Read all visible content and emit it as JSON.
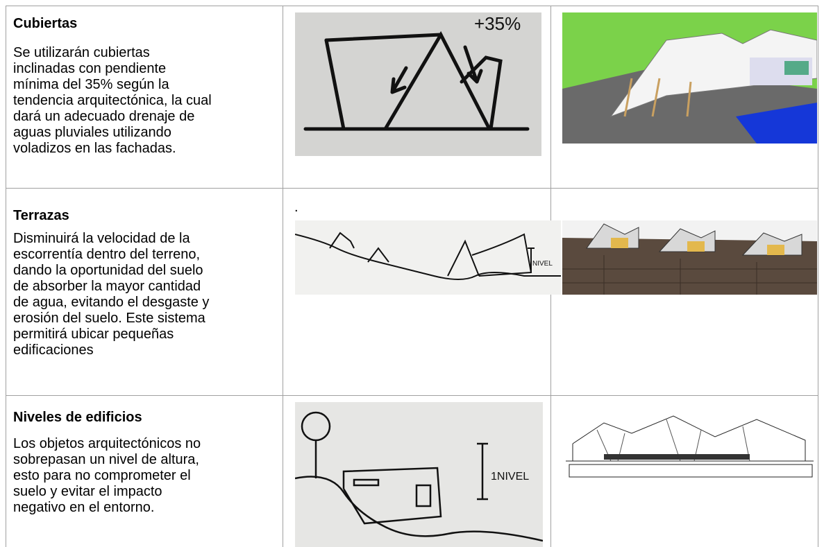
{
  "table": {
    "rows": [
      {
        "title": "Cubiertas",
        "lines": [
          "Se utilizarán cubiertas",
          "inclinadas con pendiente",
          "mínima del 35% según la",
          "tendencia arquitectónica, la cual",
          "dará un adecuado drenaje de",
          "aguas pluviales utilizando",
          "voladizos en las fachadas."
        ],
        "sketch_label": "+35%"
      },
      {
        "title": "Terrazas",
        "mark": ".",
        "lines": [
          "Disminuirá la velocidad de la",
          "escorrentía dentro del terreno,",
          "dando la oportunidad del suelo",
          "de absorber la mayor cantidad",
          "de agua, evitando el desgaste y",
          "erosión del suelo. Este sistema",
          "permitirá ubicar pequeñas",
          "edificaciones"
        ],
        "sketch_label": "NIVEL"
      },
      {
        "title": "Niveles de edificios",
        "lines": [
          "Los objetos arquitectónicos no",
          "sobrepasan un nivel de altura,",
          "esto para no comprometer el",
          "suelo y evitar el impacto",
          "negativo en el entorno."
        ],
        "sketch_label": "1NIVEL"
      }
    ]
  }
}
